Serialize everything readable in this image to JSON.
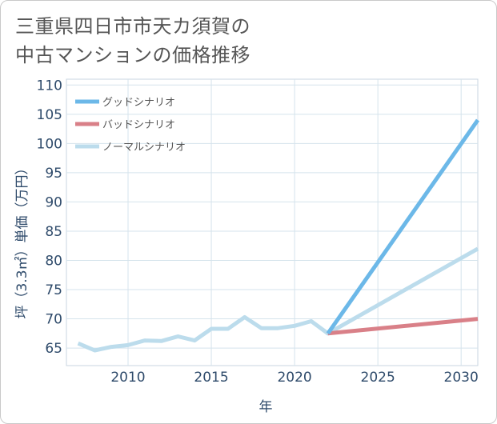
{
  "title_lines": [
    "三重県四日市市天カ須賀の",
    "中古マンションの価格推移"
  ],
  "chart_data": {
    "type": "line",
    "title": "三重県四日市市天カ須賀の中古マンションの価格推移",
    "xlabel": "年",
    "ylabel": "坪（3.3㎡）単価（万円）",
    "xlim": [
      2006.3,
      2031
    ],
    "ylim": [
      62,
      111
    ],
    "x_ticks": [
      2010,
      2015,
      2020,
      2025,
      2030
    ],
    "y_ticks": [
      65,
      70,
      75,
      80,
      85,
      90,
      95,
      100,
      105,
      110
    ],
    "grid": true,
    "legend_position": "top-left",
    "series": [
      {
        "name": "グッドシナリオ",
        "color": "#6cb8e8",
        "x": [
          2022,
          2031
        ],
        "values": [
          67.5,
          104
        ]
      },
      {
        "name": "バッドシナリオ",
        "color": "#d98088",
        "x": [
          2022,
          2031
        ],
        "values": [
          67.5,
          70
        ]
      },
      {
        "name": "ノーマルシナリオ",
        "color": "#bcdcec",
        "x": [
          2007,
          2008,
          2009,
          2010,
          2011,
          2012,
          2013,
          2014,
          2015,
          2016,
          2017,
          2018,
          2019,
          2020,
          2021,
          2022,
          2031
        ],
        "values": [
          65.8,
          64.6,
          65.2,
          65.5,
          66.3,
          66.2,
          67.0,
          66.3,
          68.3,
          68.3,
          70.3,
          68.4,
          68.4,
          68.8,
          69.6,
          67.5,
          82
        ]
      }
    ]
  }
}
